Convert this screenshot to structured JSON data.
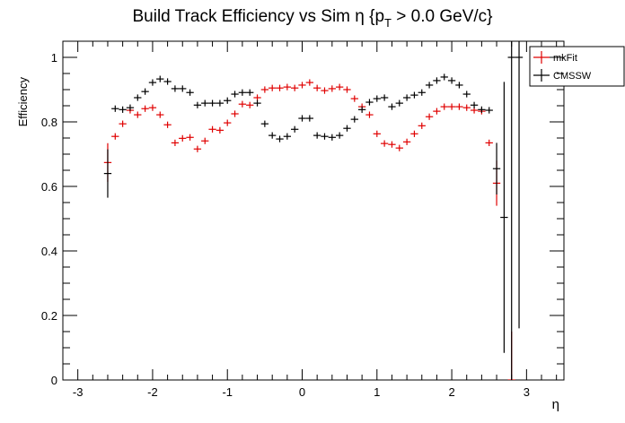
{
  "chart_data": {
    "type": "errorbar",
    "title": "Build Track Efficiency vs Sim η {p",
    "title_subscript": "T",
    "title_end": " > 0.0 GeV/c}",
    "x_label": "η",
    "y_label": "Efficiency",
    "xlim": [
      -3.2,
      3.5
    ],
    "ylim": [
      0,
      1.05
    ],
    "xticks": [
      -3,
      -2,
      -1,
      0,
      1,
      2,
      3
    ],
    "yticks": [
      0,
      0.2,
      0.4,
      0.6,
      0.8,
      1
    ],
    "legend": "top-right-outside",
    "series": [
      {
        "name": "mkFit",
        "color": "#e00000",
        "x": [
          -2.6,
          -2.5,
          -2.4,
          -2.3,
          -2.2,
          -2.1,
          -2.0,
          -1.9,
          -1.8,
          -1.7,
          -1.6,
          -1.5,
          -1.4,
          -1.3,
          -1.2,
          -1.1,
          -1.0,
          -0.9,
          -0.8,
          -0.7,
          -0.6,
          -0.5,
          -0.4,
          -0.3,
          -0.2,
          -0.1,
          0.0,
          0.1,
          0.2,
          0.3,
          0.4,
          0.5,
          0.6,
          0.7,
          0.8,
          0.9,
          1.0,
          1.1,
          1.2,
          1.3,
          1.4,
          1.5,
          1.6,
          1.7,
          1.8,
          1.9,
          2.0,
          2.1,
          2.2,
          2.3,
          2.4,
          2.5,
          2.6,
          2.8
        ],
        "values": [
          0.674,
          0.755,
          0.794,
          0.836,
          0.822,
          0.841,
          0.844,
          0.822,
          0.791,
          0.735,
          0.749,
          0.752,
          0.716,
          0.741,
          0.777,
          0.774,
          0.797,
          0.825,
          0.855,
          0.852,
          0.875,
          0.9,
          0.905,
          0.905,
          0.908,
          0.905,
          0.914,
          0.922,
          0.905,
          0.897,
          0.903,
          0.908,
          0.9,
          0.872,
          0.847,
          0.822,
          0.763,
          0.733,
          0.73,
          0.719,
          0.738,
          0.763,
          0.788,
          0.816,
          0.833,
          0.847,
          0.847,
          0.847,
          0.844,
          0.836,
          0.833,
          0.735,
          0.61,
          0
        ],
        "errors": [
          0.06,
          0.01,
          0.01,
          0.01,
          0.01,
          0.01,
          0.01,
          0.01,
          0.01,
          0.01,
          0.01,
          0.01,
          0.01,
          0.01,
          0.01,
          0.01,
          0.01,
          0.01,
          0.01,
          0.01,
          0.01,
          0.01,
          0.01,
          0.01,
          0.01,
          0.01,
          0.01,
          0.01,
          0.01,
          0.01,
          0.01,
          0.01,
          0.01,
          0.01,
          0.01,
          0.01,
          0.01,
          0.01,
          0.01,
          0.01,
          0.01,
          0.01,
          0.01,
          0.01,
          0.01,
          0.01,
          0.01,
          0.01,
          0.01,
          0.01,
          0.01,
          0.01,
          0.07,
          0.15
        ]
      },
      {
        "name": "CMSSW",
        "color": "#000000",
        "x": [
          -2.6,
          -2.5,
          -2.4,
          -2.3,
          -2.2,
          -2.1,
          -2.0,
          -1.9,
          -1.8,
          -1.7,
          -1.6,
          -1.5,
          -1.4,
          -1.3,
          -1.2,
          -1.1,
          -1.0,
          -0.9,
          -0.8,
          -0.7,
          -0.6,
          -0.5,
          -0.4,
          -0.3,
          -0.2,
          -0.1,
          0.0,
          0.1,
          0.2,
          0.3,
          0.4,
          0.5,
          0.6,
          0.7,
          0.8,
          0.9,
          1.0,
          1.1,
          1.2,
          1.3,
          1.4,
          1.5,
          1.6,
          1.7,
          1.8,
          1.9,
          2.0,
          2.1,
          2.2,
          2.3,
          2.4,
          2.5,
          2.6,
          2.7,
          2.8,
          2.9
        ],
        "values": [
          0.64,
          0.841,
          0.838,
          0.844,
          0.875,
          0.894,
          0.922,
          0.933,
          0.925,
          0.903,
          0.903,
          0.891,
          0.852,
          0.858,
          0.858,
          0.858,
          0.866,
          0.886,
          0.891,
          0.891,
          0.858,
          0.794,
          0.758,
          0.747,
          0.755,
          0.777,
          0.811,
          0.811,
          0.758,
          0.755,
          0.752,
          0.758,
          0.78,
          0.808,
          0.838,
          0.861,
          0.872,
          0.875,
          0.847,
          0.858,
          0.875,
          0.883,
          0.891,
          0.914,
          0.928,
          0.939,
          0.928,
          0.914,
          0.886,
          0.852,
          0.838,
          0.836,
          0.655,
          0.504,
          1.0,
          1.0
        ],
        "errors": [
          0.075,
          0.01,
          0.01,
          0.01,
          0.01,
          0.01,
          0.01,
          0.01,
          0.01,
          0.01,
          0.01,
          0.01,
          0.01,
          0.01,
          0.01,
          0.01,
          0.01,
          0.01,
          0.01,
          0.01,
          0.01,
          0.01,
          0.01,
          0.01,
          0.01,
          0.01,
          0.01,
          0.01,
          0.01,
          0.01,
          0.01,
          0.01,
          0.01,
          0.01,
          0.01,
          0.01,
          0.01,
          0.01,
          0.01,
          0.01,
          0.01,
          0.01,
          0.01,
          0.01,
          0.01,
          0.01,
          0.01,
          0.01,
          0.01,
          0.01,
          0.01,
          0.01,
          0.08,
          0.42,
          1.0,
          0.84
        ]
      }
    ]
  }
}
